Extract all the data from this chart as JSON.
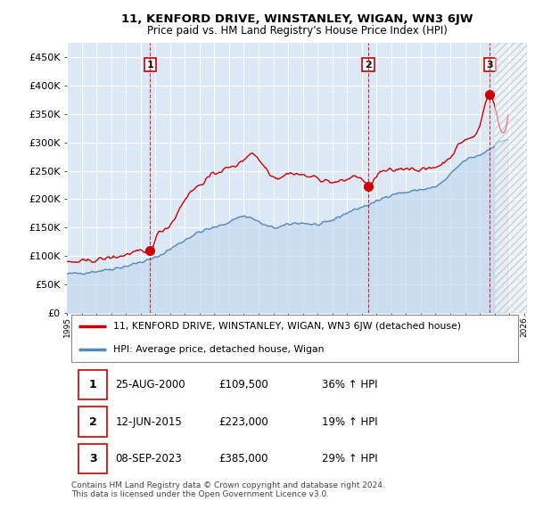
{
  "title": "11, KENFORD DRIVE, WINSTANLEY, WIGAN, WN3 6JW",
  "subtitle": "Price paid vs. HM Land Registry's House Price Index (HPI)",
  "ylabel_ticks": [
    "£0",
    "£50K",
    "£100K",
    "£150K",
    "£200K",
    "£250K",
    "£300K",
    "£350K",
    "£400K",
    "£450K"
  ],
  "ytick_values": [
    0,
    50000,
    100000,
    150000,
    200000,
    250000,
    300000,
    350000,
    400000,
    450000
  ],
  "ylim": [
    0,
    475000
  ],
  "xlim_start": 1995.0,
  "xlim_end": 2026.2,
  "sale_dates": [
    2000.65,
    2015.44,
    2023.69
  ],
  "sale_prices": [
    109500,
    223000,
    385000
  ],
  "sale_labels": [
    "1",
    "2",
    "3"
  ],
  "dashed_color": "#cc0000",
  "line_color_red": "#cc0000",
  "line_color_blue": "#5588bb",
  "background_chart": "#dce8f5",
  "background_fig": "#ffffff",
  "grid_color": "#ffffff",
  "hatch_start": 2024.0,
  "legend_line1": "11, KENFORD DRIVE, WINSTANLEY, WIGAN, WN3 6JW (detached house)",
  "legend_line2": "HPI: Average price, detached house, Wigan",
  "table_rows": [
    [
      "1",
      "25-AUG-2000",
      "£109,500",
      "36% ↑ HPI"
    ],
    [
      "2",
      "12-JUN-2015",
      "£223,000",
      "19% ↑ HPI"
    ],
    [
      "3",
      "08-SEP-2023",
      "£385,000",
      "29% ↑ HPI"
    ]
  ],
  "footer": "Contains HM Land Registry data © Crown copyright and database right 2024.\nThis data is licensed under the Open Government Licence v3.0."
}
